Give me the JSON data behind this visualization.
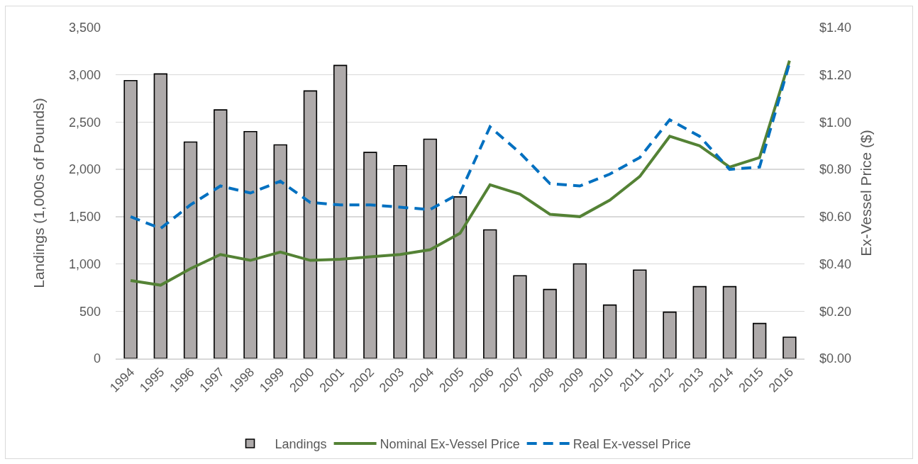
{
  "chart_data": {
    "type": "bar",
    "categories": [
      "1994",
      "1995",
      "1996",
      "1997",
      "1998",
      "1999",
      "2000",
      "2001",
      "2002",
      "2003",
      "2004",
      "2005",
      "2006",
      "2007",
      "2008",
      "2009",
      "2010",
      "2011",
      "2012",
      "2013",
      "2014",
      "2015",
      "2016"
    ],
    "ylabel": "Landings (1,000s of Pounds)",
    "y2label": "Ex-Vessel Price ($)",
    "ylim": [
      0,
      3500
    ],
    "yticks": [
      0,
      500,
      {
        "value": 1000,
        "label": "1,000"
      },
      {
        "value": 1500,
        "label": "1,500"
      },
      {
        "value": 2000,
        "label": "2,000"
      },
      {
        "value": 2500,
        "label": "2,500"
      },
      {
        "value": 3000,
        "label": "3,000"
      },
      {
        "value": 3500,
        "label": "3,500"
      }
    ],
    "y2lim": [
      0,
      1.4
    ],
    "y2ticks": [
      {
        "value": 0,
        "label": "$0.00"
      },
      {
        "value": 0.2,
        "label": "$0.20"
      },
      {
        "value": 0.4,
        "label": "$0.40"
      },
      {
        "value": 0.6,
        "label": "$0.60"
      },
      {
        "value": 0.8,
        "label": "$0.80"
      },
      {
        "value": 1.0,
        "label": "$1.00"
      },
      {
        "value": 1.2,
        "label": "$1.20"
      },
      {
        "value": 1.4,
        "label": "$1.40"
      }
    ],
    "series": [
      {
        "name": "Landings",
        "color": "#aeaaaa",
        "values": [
          2940,
          3010,
          2290,
          2630,
          2400,
          2260,
          2830,
          3100,
          2180,
          2040,
          2320,
          1710,
          1360,
          875,
          730,
          1000,
          565,
          935,
          490,
          760,
          760,
          370,
          225
        ]
      },
      {
        "name": "Nominal Ex-Vessel Price",
        "type": "line",
        "axis": "y2",
        "color": "#548235",
        "line_style": "solid",
        "values": [
          0.33,
          0.31,
          0.38,
          0.44,
          0.415,
          0.45,
          0.415,
          0.42,
          0.43,
          0.44,
          0.46,
          0.53,
          0.735,
          0.695,
          0.61,
          0.6,
          0.67,
          0.77,
          0.94,
          0.9,
          0.81,
          0.85,
          1.26
        ]
      },
      {
        "name": "Real Ex-vessel Price",
        "type": "line",
        "axis": "y2",
        "color": "#0070c0",
        "line_style": "dashed",
        "values": [
          0.6,
          0.55,
          0.65,
          0.73,
          0.7,
          0.75,
          0.66,
          0.65,
          0.65,
          0.64,
          0.63,
          0.7,
          0.98,
          0.87,
          0.74,
          0.73,
          0.78,
          0.85,
          1.01,
          0.94,
          0.8,
          0.81,
          1.25
        ]
      }
    ],
    "grid": "y",
    "legend": "bottom"
  }
}
